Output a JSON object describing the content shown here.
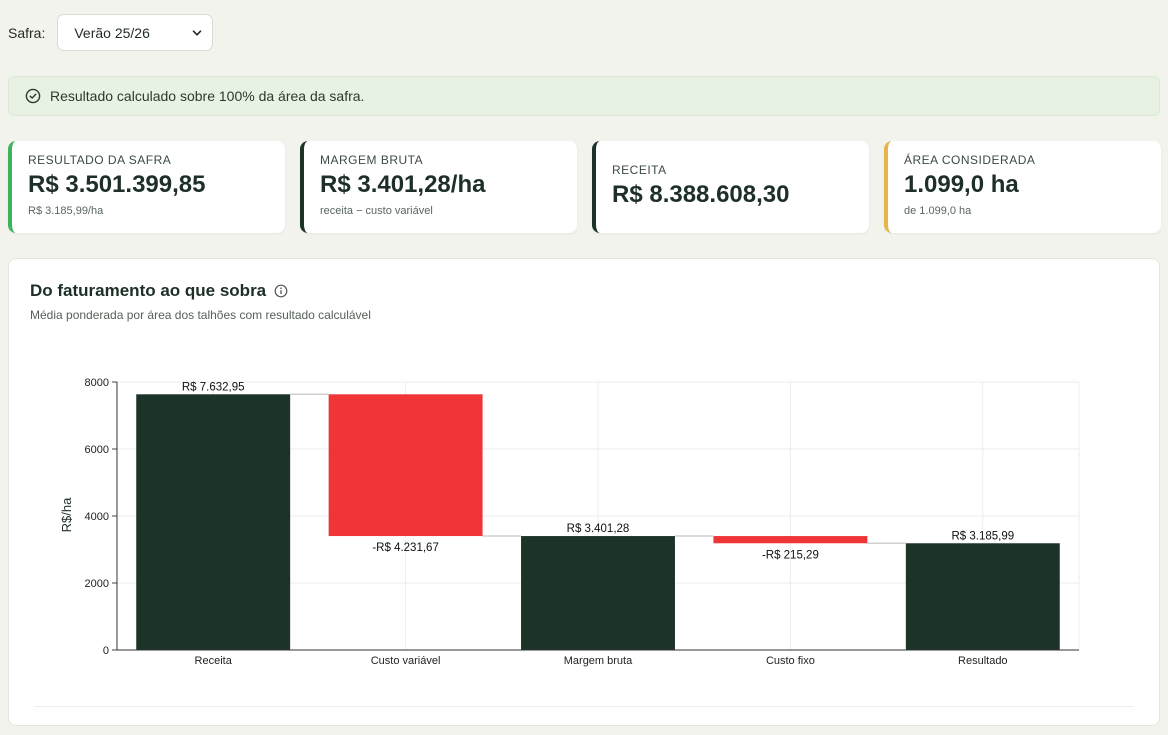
{
  "filter": {
    "label": "Safra:",
    "selected": "Verão 25/26"
  },
  "banner": {
    "text": "Resultado calculado sobre 100% da área da safra."
  },
  "kpis": [
    {
      "label": "RESULTADO DA SAFRA",
      "value": "R$ 3.501.399,85",
      "sub": "R$ 3.185,99/ha",
      "accent": "#3fb35c"
    },
    {
      "label": "MARGEM BRUTA",
      "value": "R$ 3.401,28/ha",
      "sub": "receita − custo variável",
      "accent": "#1c3328"
    },
    {
      "label": "RECEITA",
      "value": "R$ 8.388.608,30",
      "sub": "",
      "accent": "#1c3328"
    },
    {
      "label": "ÁREA CONSIDERADA",
      "value": "1.099,0 ha",
      "sub": "de 1.099,0 ha",
      "accent": "#e8b54a"
    }
  ],
  "panel": {
    "title": "Do faturamento ao que sobra",
    "subtitle": "Média ponderada por área dos talhões com resultado calculável"
  },
  "chart_data": {
    "type": "bar",
    "subtype": "waterfall",
    "ylabel": "R$/ha",
    "ylim": [
      0,
      8000
    ],
    "yticks": [
      0,
      2000,
      4000,
      6000,
      8000
    ],
    "grid": true,
    "categories": [
      "Receita",
      "Custo variável",
      "Margem bruta",
      "Custo fixo",
      "Resultado"
    ],
    "bars": [
      {
        "category": "Receita",
        "start": 0,
        "end": 7632.95,
        "kind": "total",
        "label": "R$ 7.632,95"
      },
      {
        "category": "Custo variável",
        "start": 7632.95,
        "end": 3401.28,
        "kind": "decrease",
        "label": "-R$ 4.231,67"
      },
      {
        "category": "Margem bruta",
        "start": 0,
        "end": 3401.28,
        "kind": "total",
        "label": "R$ 3.401,28"
      },
      {
        "category": "Custo fixo",
        "start": 3401.28,
        "end": 3185.99,
        "kind": "decrease",
        "label": "-R$ 215,29"
      },
      {
        "category": "Resultado",
        "start": 0,
        "end": 3185.99,
        "kind": "total",
        "label": "R$ 3.185,99"
      }
    ],
    "colors": {
      "total": "#1c3328",
      "decrease": "#ef3538",
      "connector": "#d0d0d0",
      "grid": "#ececec"
    }
  }
}
